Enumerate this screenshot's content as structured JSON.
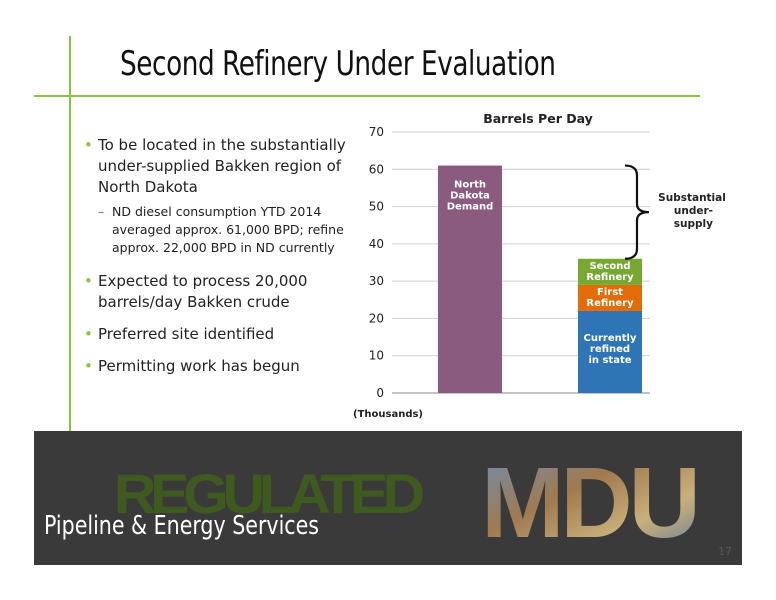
{
  "slide": {
    "title": "Second Refinery Under Evaluation",
    "page_number": "17"
  },
  "bullets": [
    {
      "text": "To be located in the substantially under-supplied Bakken region of North Dakota",
      "sub": "ND diesel consumption YTD 2014 averaged approx. 61,000 BPD; refine approx. 22,000 BPD in ND currently"
    },
    {
      "text": "Expected to process 20,000 barrels/day Bakken crude"
    },
    {
      "text": "Preferred site identified"
    },
    {
      "text": "Permitting work has begun"
    }
  ],
  "chart_data": {
    "type": "bar",
    "stacked": true,
    "title": "Barrels Per Day",
    "xlabel": "",
    "ylabel": "",
    "unit_label": "(Thousands)",
    "ylim": [
      0,
      70
    ],
    "yticks": [
      0,
      10,
      20,
      30,
      40,
      50,
      60,
      70
    ],
    "grid": true,
    "bars": [
      {
        "segments": [
          {
            "label": "North Dakota Demand",
            "value": 61,
            "color": "#8b5a7f"
          }
        ]
      },
      {
        "segments": [
          {
            "label": "Currently refined in state",
            "value": 22,
            "color": "#2e75b6"
          },
          {
            "label": "First Refinery",
            "value": 7,
            "color": "#e36c09"
          },
          {
            "label": "Second Refinery",
            "value": 7,
            "color": "#77a832"
          }
        ]
      }
    ],
    "annotation": {
      "text": "Substantial under-supply",
      "from": 36,
      "to": 61
    }
  },
  "banner": {
    "regulated": "REGULATED",
    "pipeline": "Pipeline & Energy Services",
    "logo": "MDU",
    "colors": {
      "background": "#3a3a3a",
      "regulated": "#3e5a1e"
    }
  }
}
